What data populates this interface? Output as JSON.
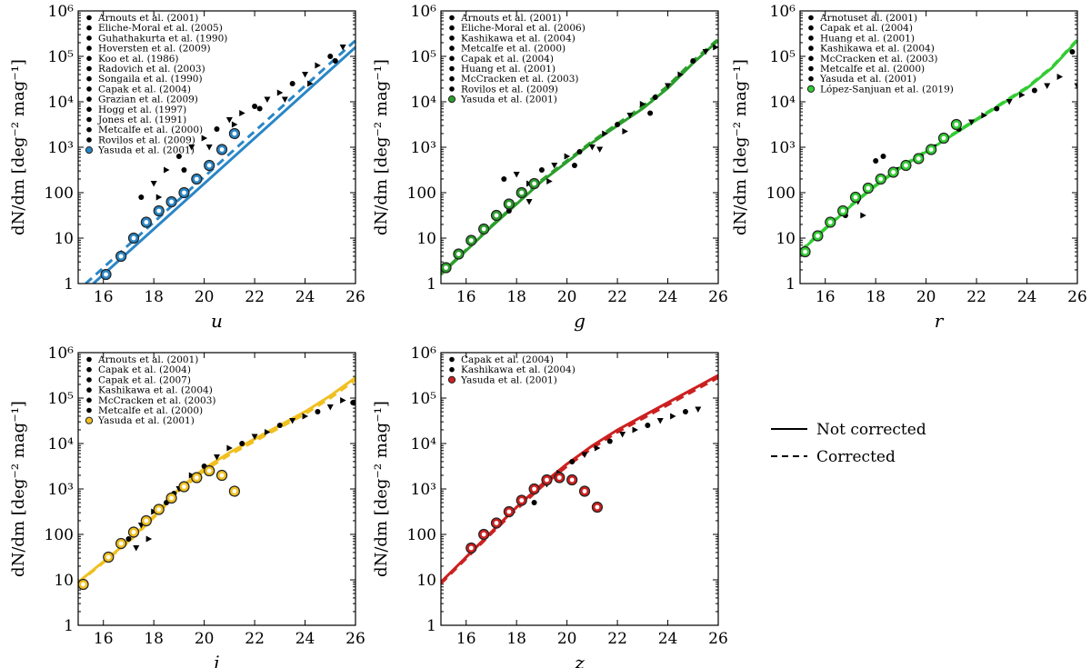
{
  "chart_data": [
    {
      "type": "scatter",
      "band": "u",
      "xlabel": "u",
      "ylabel": "dN/dm  [deg⁻² mag⁻¹]",
      "xlim": [
        15,
        26
      ],
      "ylim_log10": [
        0,
        6
      ],
      "xticks": [
        "16",
        "18",
        "20",
        "22",
        "24",
        "26"
      ],
      "yticks": [
        "1",
        "10",
        "100",
        "10³",
        "10⁴",
        "10⁵",
        "10⁶"
      ],
      "color": "#2a86c5",
      "legend": [
        "Arnouts et al. (2001)",
        "Eliche-Moral et al. (2005)",
        "Guhathakurta et al. (1990)",
        "Hoversten et al. (2009)",
        "Koo et al. (1986)",
        "Radovich et al. (2003)",
        "Songaila et al. (1990)",
        "Capak et al. (2004)",
        "Grazian et al. (2009)",
        "Hogg et al. (1997)",
        "Jones et al. (1991)",
        "Metcalfe et al. (2000)",
        "Rovilos et al. (2009)",
        "Yasuda et al. (2001)"
      ],
      "series": [
        {
          "name": "Not corrected",
          "style": "solid",
          "x": [
            15.6,
            26
          ],
          "log10y": [
            0,
            5.2
          ]
        },
        {
          "name": "Corrected",
          "style": "dashed",
          "x": [
            15.3,
            26
          ],
          "log10y": [
            0,
            5.35
          ]
        },
        {
          "name": "Yasuda et al. (2001)",
          "style": "ring",
          "x": [
            16.1,
            16.7,
            17.2,
            17.7,
            18.2,
            18.7,
            19.2,
            19.7,
            20.2,
            20.7,
            21.2
          ],
          "log10y": [
            0.2,
            0.6,
            1.0,
            1.35,
            1.6,
            1.8,
            2.0,
            2.3,
            2.6,
            2.95,
            3.3
          ]
        },
        {
          "name": "Literature",
          "style": "black",
          "x": [
            17.5,
            18.0,
            18.5,
            19.0,
            19.5,
            20.0,
            20.5,
            21.0,
            21.5,
            22.0,
            22.5,
            23.0,
            23.5,
            24.0,
            24.5,
            25.0,
            25.5,
            18.2,
            19.2,
            20.2,
            21.2,
            22.2,
            23.2,
            24.2,
            25.2
          ],
          "log10y": [
            1.9,
            2.2,
            2.5,
            2.8,
            3.0,
            3.2,
            3.4,
            3.6,
            3.75,
            3.9,
            4.05,
            4.2,
            4.4,
            4.6,
            4.8,
            5.0,
            5.2,
            1.9,
            2.5,
            3.0,
            3.5,
            3.85,
            4.05,
            4.4,
            4.9
          ]
        }
      ]
    },
    {
      "type": "scatter",
      "band": "g",
      "xlabel": "g",
      "ylabel": "dN/dm  [deg⁻² mag⁻¹]",
      "xlim": [
        15,
        26
      ],
      "ylim_log10": [
        0,
        6
      ],
      "xticks": [
        "16",
        "18",
        "20",
        "22",
        "24",
        "26"
      ],
      "yticks": [
        "1",
        "10",
        "100",
        "10³",
        "10⁴",
        "10⁵",
        "10⁶"
      ],
      "color": "#2c9e2c",
      "legend": [
        "Arnouts et al. (2001)",
        "Eliche-Moral et al. (2006)",
        "Kashikawa et al. (2004)",
        "Metcalfe et al. (2000)",
        "Capak et al. (2004)",
        "Huang et al. (2001)",
        "McCracken et al. (2003)",
        "Rovilos et al. (2009)",
        "Yasuda et al. (2001)"
      ],
      "series": [
        {
          "name": "Not corrected",
          "style": "solid",
          "x": [
            15,
            17,
            19,
            21,
            23,
            24,
            25,
            26
          ],
          "log10y": [
            0.2,
            1.25,
            2.25,
            3.1,
            3.85,
            4.3,
            4.85,
            5.35
          ]
        },
        {
          "name": "Corrected",
          "style": "dashed",
          "x": [
            15,
            17,
            19,
            21,
            23,
            24,
            25,
            26
          ],
          "log10y": [
            0.22,
            1.27,
            2.28,
            3.13,
            3.9,
            4.35,
            4.9,
            5.38
          ]
        },
        {
          "name": "Yasuda et al. (2001)",
          "style": "ring",
          "x": [
            15.2,
            15.7,
            16.2,
            16.7,
            17.2,
            17.7,
            18.2,
            18.7
          ],
          "log10y": [
            0.35,
            0.65,
            0.95,
            1.2,
            1.5,
            1.75,
            2.0,
            2.2
          ]
        },
        {
          "name": "Literature",
          "style": "black",
          "x": [
            17.5,
            18.0,
            18.5,
            19.0,
            19.5,
            20.0,
            20.5,
            21.0,
            21.5,
            22.0,
            22.5,
            23.0,
            23.5,
            24.0,
            24.5,
            25.0,
            25.5,
            25.9,
            17.7,
            18.5,
            19.3,
            20.3,
            21.3,
            22.3,
            23.3
          ],
          "log10y": [
            2.3,
            2.4,
            2.2,
            2.5,
            2.6,
            2.8,
            2.9,
            3.0,
            3.3,
            3.5,
            3.7,
            3.95,
            4.1,
            4.35,
            4.6,
            4.9,
            5.1,
            5.2,
            1.6,
            1.8,
            2.25,
            2.6,
            2.95,
            3.35,
            3.75
          ]
        }
      ]
    },
    {
      "type": "scatter",
      "band": "r",
      "xlabel": "r",
      "ylabel": "dN/dm  [deg⁻² mag⁻¹]",
      "xlim": [
        15,
        26
      ],
      "ylim_log10": [
        0,
        6
      ],
      "xticks": [
        "16",
        "18",
        "20",
        "22",
        "24",
        "26"
      ],
      "yticks": [
        "1",
        "10",
        "100",
        "10³",
        "10⁴",
        "10⁵",
        "10⁶"
      ],
      "color": "#33cc33",
      "legend": [
        "Arnotuset al. (2001)",
        "Capak et al. (2004)",
        "Huang et al. (2001)",
        "Kashikawa et al. (2004)",
        "McCracken et al. (2003)",
        "Metcalfe et al. (2000)",
        "Yasuda et al. (2001)",
        "López-Sanjuan et al. (2019)"
      ],
      "series": [
        {
          "name": "Not corrected",
          "style": "solid",
          "x": [
            15,
            16,
            17,
            18,
            19,
            20,
            21,
            22,
            23,
            24,
            25,
            26
          ],
          "log10y": [
            0.7,
            1.2,
            1.7,
            2.15,
            2.55,
            2.9,
            3.25,
            3.6,
            3.95,
            4.3,
            4.75,
            5.35
          ]
        },
        {
          "name": "Corrected",
          "style": "dashed",
          "x": [
            15,
            16,
            17,
            18,
            19,
            20,
            21,
            22,
            23,
            24,
            25,
            26
          ],
          "log10y": [
            0.72,
            1.22,
            1.72,
            2.17,
            2.57,
            2.92,
            3.27,
            3.62,
            3.97,
            4.32,
            4.77,
            5.37
          ]
        },
        {
          "name": "Yasuda et al. (2001)",
          "style": "ring",
          "x": [
            15.2,
            15.7,
            16.2,
            16.7,
            17.2,
            17.7,
            18.2,
            18.7,
            19.2,
            19.7,
            20.2,
            20.7,
            21.2
          ],
          "log10y": [
            0.7,
            1.05,
            1.35,
            1.6,
            1.9,
            2.1,
            2.3,
            2.45,
            2.6,
            2.75,
            2.95,
            3.2,
            3.5
          ]
        },
        {
          "name": "Literature",
          "style": "black",
          "x": [
            16.8,
            17.3,
            17.8,
            18.3,
            18.8,
            19.3,
            19.8,
            20.3,
            20.8,
            21.3,
            21.8,
            22.3,
            22.8,
            23.3,
            23.8,
            24.3,
            24.8,
            25.3,
            25.8,
            26.0,
            17.5,
            18.0
          ],
          "log10y": [
            1.5,
            1.8,
            2.1,
            2.8,
            2.5,
            2.6,
            2.8,
            3.0,
            3.2,
            3.4,
            3.55,
            3.7,
            3.85,
            4.0,
            4.15,
            4.25,
            4.35,
            4.55,
            5.1,
            4.35,
            1.5,
            2.7
          ]
        }
      ]
    },
    {
      "type": "scatter",
      "band": "i",
      "xlabel": "i",
      "ylabel": "dN/dm  [deg⁻² mag⁻¹]",
      "xlim": [
        15,
        26
      ],
      "ylim_log10": [
        0,
        6
      ],
      "xticks": [
        "16",
        "18",
        "20",
        "22",
        "24",
        "26"
      ],
      "yticks": [
        "1",
        "10",
        "100",
        "10³",
        "10⁴",
        "10⁵",
        "10⁶"
      ],
      "color": "#f0c020",
      "legend": [
        "Arnouts et al. (2001)",
        "Capak et al. (2004)",
        "Capak et al. (2007)",
        "Kashikawa et al. (2004)",
        "McCracken et al. (2003)",
        "Metcalfe et al. (2000)",
        "Yasuda et al. (2001)"
      ],
      "series": [
        {
          "name": "Not corrected",
          "style": "solid",
          "x": [
            15,
            16,
            17,
            18,
            19,
            20,
            21,
            22,
            23,
            24,
            25,
            26
          ],
          "log10y": [
            0.95,
            1.4,
            1.85,
            2.4,
            3.0,
            3.45,
            3.8,
            4.1,
            4.4,
            4.7,
            5.05,
            5.45
          ]
        },
        {
          "name": "Corrected",
          "style": "dashed",
          "x": [
            15,
            16,
            17,
            18,
            19,
            20,
            21,
            22,
            23,
            24,
            25,
            26
          ],
          "log10y": [
            0.93,
            1.38,
            1.83,
            2.37,
            2.95,
            3.4,
            3.75,
            4.05,
            4.35,
            4.65,
            5.0,
            5.4
          ]
        },
        {
          "name": "Yasuda et al. (2001)",
          "style": "ring",
          "x": [
            15.2,
            16.2,
            16.7,
            17.2,
            17.7,
            18.2,
            18.7,
            19.2,
            19.7,
            20.2,
            20.7,
            21.2
          ],
          "log10y": [
            0.9,
            1.5,
            1.8,
            2.05,
            2.3,
            2.55,
            2.8,
            3.05,
            3.25,
            3.4,
            3.3,
            2.95
          ]
        },
        {
          "name": "Literature",
          "style": "black",
          "x": [
            17.0,
            17.5,
            18.0,
            18.5,
            19.0,
            19.5,
            20.0,
            20.5,
            21.0,
            21.5,
            22.0,
            22.5,
            23.0,
            23.5,
            24.0,
            24.5,
            25.0,
            25.5,
            25.9,
            17.3,
            17.8,
            18.8,
            19.8,
            20.8
          ],
          "log10y": [
            1.9,
            2.2,
            2.5,
            2.7,
            3.0,
            3.3,
            3.5,
            3.7,
            3.9,
            4.0,
            4.15,
            4.25,
            4.4,
            4.5,
            4.6,
            4.7,
            4.8,
            4.95,
            4.9,
            1.7,
            1.9,
            2.9,
            3.2,
            3.3
          ]
        }
      ]
    },
    {
      "type": "scatter",
      "band": "z",
      "xlabel": "z",
      "ylabel": "dN/dm  [deg⁻² mag⁻¹]",
      "xlim": [
        15,
        26
      ],
      "ylim_log10": [
        0,
        6
      ],
      "xticks": [
        "16",
        "18",
        "20",
        "22",
        "24",
        "26"
      ],
      "yticks": [
        "1",
        "10",
        "100",
        "10³",
        "10⁴",
        "10⁵",
        "10⁶"
      ],
      "color": "#cc2020",
      "legend": [
        "Capak et al. (2004)",
        "Kashikawa et al. (2004)",
        "Yasuda et al. (2001)"
      ],
      "series": [
        {
          "name": "Not corrected",
          "style": "solid",
          "x": [
            15,
            16,
            17,
            18,
            19,
            20,
            21,
            22,
            23,
            24,
            25,
            26
          ],
          "log10y": [
            0.95,
            1.5,
            2.05,
            2.6,
            3.1,
            3.55,
            3.95,
            4.3,
            4.6,
            4.9,
            5.2,
            5.5
          ]
        },
        {
          "name": "Corrected",
          "style": "dashed",
          "x": [
            15,
            16,
            17,
            18,
            19,
            20,
            21,
            22,
            23,
            24,
            25,
            26
          ],
          "log10y": [
            0.92,
            1.47,
            2.02,
            2.55,
            3.05,
            3.5,
            3.9,
            4.25,
            4.55,
            4.85,
            5.15,
            5.45
          ]
        },
        {
          "name": "Yasuda et al. (2001)",
          "style": "ring",
          "x": [
            16.2,
            16.7,
            17.2,
            17.7,
            18.2,
            18.7,
            19.2,
            19.7,
            20.2,
            20.7,
            21.2
          ],
          "log10y": [
            1.7,
            2.0,
            2.25,
            2.5,
            2.75,
            3.0,
            3.2,
            3.25,
            3.2,
            2.95,
            2.6
          ]
        },
        {
          "name": "Literature",
          "style": "black",
          "x": [
            18.7,
            19.2,
            19.7,
            20.2,
            20.7,
            21.2,
            21.7,
            22.2,
            22.7,
            23.2,
            23.7,
            24.2,
            24.7,
            25.2
          ],
          "log10y": [
            2.7,
            3.1,
            3.35,
            3.6,
            3.75,
            3.9,
            4.05,
            4.2,
            4.3,
            4.4,
            4.5,
            4.6,
            4.7,
            4.75
          ]
        }
      ]
    }
  ],
  "figure_legend": {
    "not_corrected": "Not corrected",
    "corrected": "Corrected"
  }
}
